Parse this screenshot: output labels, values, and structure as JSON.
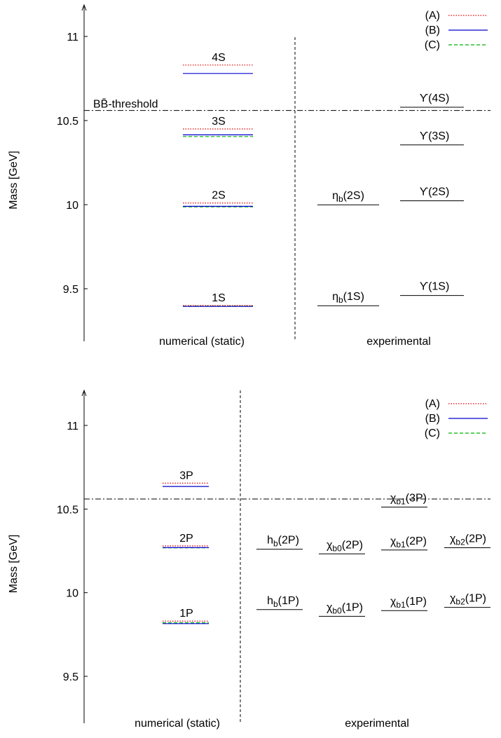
{
  "chart_data": [
    {
      "type": "level-diagram",
      "ylabel": "Mass [GeV]",
      "ylim": [
        9.2,
        11.2
      ],
      "yticks": [
        9.5,
        10,
        10.5,
        11
      ],
      "threshold": {
        "label": "BB̄-threshold",
        "value": 10.56
      },
      "legend": {
        "placement": "top-right",
        "entries": [
          {
            "label": "(A)",
            "color": "#e00000",
            "style": "dotted"
          },
          {
            "label": "(B)",
            "color": "#0000d0",
            "style": "solid"
          },
          {
            "label": "(C)",
            "color": "#00b000",
            "style": "dashed"
          }
        ]
      },
      "columns": [
        "numerical (static)",
        "experimental"
      ],
      "numerical": [
        {
          "label": "1S",
          "A": 9.4,
          "B": 9.395,
          "C": 9.397
        },
        {
          "label": "2S",
          "A": 10.01,
          "B": 9.99,
          "C": 9.987
        },
        {
          "label": "3S",
          "A": 10.45,
          "B": 10.415,
          "C": 10.405
        },
        {
          "label": "4S",
          "A": 10.83,
          "B": 10.78,
          "C": null
        }
      ],
      "experimental": [
        {
          "label": "η",
          "sub": "b",
          "suffix": "(1S)",
          "value": 9.399,
          "col": 0
        },
        {
          "label": "η",
          "sub": "b",
          "suffix": "(2S)",
          "value": 9.999,
          "col": 0
        },
        {
          "label": "ϒ",
          "sub": "",
          "suffix": "(1S)",
          "value": 9.46,
          "col": 1
        },
        {
          "label": "ϒ",
          "sub": "",
          "suffix": "(2S)",
          "value": 10.023,
          "col": 1
        },
        {
          "label": "ϒ",
          "sub": "",
          "suffix": "(3S)",
          "value": 10.355,
          "col": 1
        },
        {
          "label": "ϒ",
          "sub": "",
          "suffix": "(4S)",
          "value": 10.579,
          "col": 1
        }
      ]
    },
    {
      "type": "level-diagram",
      "ylabel": "Mass [GeV]",
      "ylim": [
        9.2,
        11.2
      ],
      "yticks": [
        9.5,
        10,
        10.5,
        11
      ],
      "threshold": {
        "label": "",
        "value": 10.56
      },
      "legend": {
        "placement": "top-right",
        "entries": [
          {
            "label": "(A)",
            "color": "#e00000",
            "style": "dotted"
          },
          {
            "label": "(B)",
            "color": "#0000d0",
            "style": "solid"
          },
          {
            "label": "(C)",
            "color": "#00b000",
            "style": "dashed"
          }
        ]
      },
      "columns": [
        "numerical (static)",
        "experimental"
      ],
      "numerical": [
        {
          "label": "1P",
          "A": 9.83,
          "B": 9.815,
          "C": 9.82
        },
        {
          "label": "2P",
          "A": 10.28,
          "B": 10.27,
          "C": 10.268
        },
        {
          "label": "3P",
          "A": 10.655,
          "B": 10.635,
          "C": null
        }
      ],
      "experimental": [
        {
          "label": "h",
          "sub": "b",
          "suffix": "(1P)",
          "value": 9.899,
          "col": 0
        },
        {
          "label": "h",
          "sub": "b",
          "suffix": "(2P)",
          "value": 10.26,
          "col": 0
        },
        {
          "label": "χ",
          "sub": "b0",
          "suffix": "(1P)",
          "value": 9.859,
          "col": 1
        },
        {
          "label": "χ",
          "sub": "b0",
          "suffix": "(2P)",
          "value": 10.232,
          "col": 1
        },
        {
          "label": "χ",
          "sub": "b1",
          "suffix": "(1P)",
          "value": 9.893,
          "col": 2
        },
        {
          "label": "χ",
          "sub": "b1",
          "suffix": "(2P)",
          "value": 10.255,
          "col": 2
        },
        {
          "label": "χ",
          "sub": "b1",
          "suffix": "(3P)",
          "value": 10.512,
          "col": 2
        },
        {
          "label": "χ",
          "sub": "b2",
          "suffix": "(1P)",
          "value": 9.912,
          "col": 3
        },
        {
          "label": "χ",
          "sub": "b2",
          "suffix": "(2P)",
          "value": 10.269,
          "col": 3
        }
      ]
    }
  ]
}
